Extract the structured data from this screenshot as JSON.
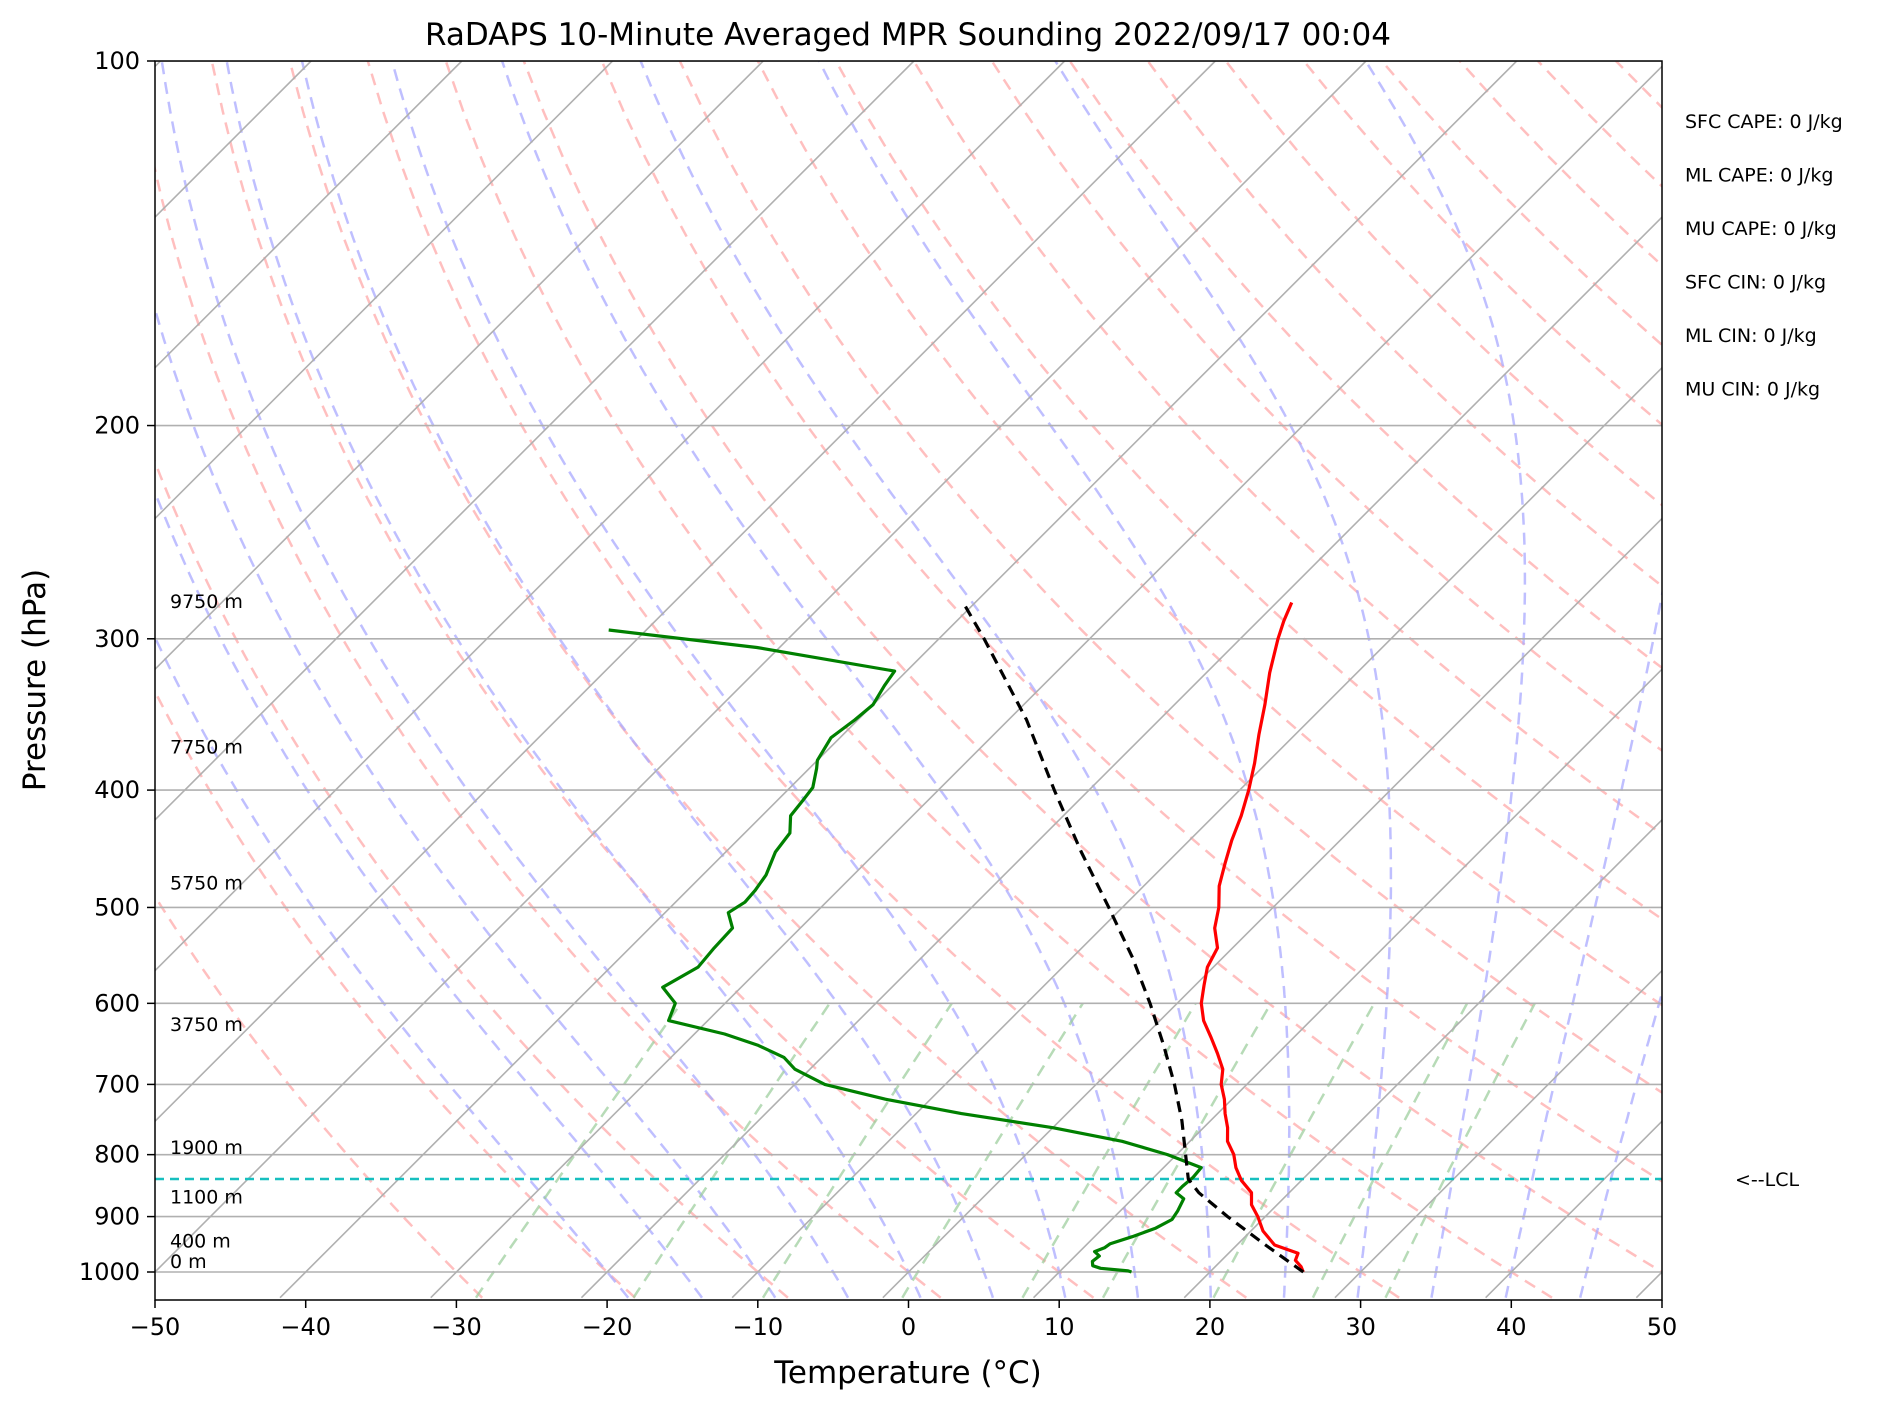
{
  "chart_data": {
    "type": "line",
    "title": "RaDAPS 10-Minute Averaged MPR Sounding 2022/09/17 00:04",
    "xlabel": "Temperature (°C)",
    "ylabel": "Pressure (hPa)",
    "xlim": [
      -50,
      50
    ],
    "ylim": [
      1050,
      100
    ],
    "y_scale": "log",
    "x_ticks": [
      -50,
      -40,
      -30,
      -20,
      -10,
      0,
      10,
      20,
      30,
      40,
      50
    ],
    "x_tick_labels": [
      "−50",
      "−40",
      "−30",
      "−20",
      "−10",
      "0",
      "10",
      "20",
      "30",
      "40",
      "50"
    ],
    "y_ticks": [
      100,
      200,
      300,
      400,
      500,
      600,
      700,
      800,
      900,
      1000
    ],
    "y_tick_labels": [
      "100",
      "200",
      "300",
      "400",
      "500",
      "600",
      "700",
      "800",
      "900",
      "1000"
    ],
    "grid": true,
    "skew": true,
    "height_labels": [
      {
        "p": 1000,
        "text": "0 m"
      },
      {
        "p": 962,
        "text": "400 m"
      },
      {
        "p": 885,
        "text": "1100 m"
      },
      {
        "p": 805,
        "text": "1900 m"
      },
      {
        "p": 637,
        "text": "3750 m"
      },
      {
        "p": 487,
        "text": "5750 m"
      },
      {
        "p": 376,
        "text": "7750 m"
      },
      {
        "p": 285,
        "text": "9750 m"
      }
    ],
    "indices": [
      "SFC CAPE: 0 J/kg",
      "ML CAPE: 0 J/kg",
      "MU CAPE: 0 J/kg",
      "SFC CIN: 0 J/kg",
      "ML CIN: 0 J/kg",
      "MU CIN: 0 J/kg"
    ],
    "lcl": {
      "p": 838,
      "label": "<--LCL"
    },
    "series": [
      {
        "key": "temperature",
        "color": "#ff0000",
        "style": "solid",
        "points": [
          [
            1000,
            26.2
          ],
          [
            990,
            25.7
          ],
          [
            978,
            24.9
          ],
          [
            965,
            24.6
          ],
          [
            950,
            22.5
          ],
          [
            925,
            20.8
          ],
          [
            900,
            19.5
          ],
          [
            880,
            18.3
          ],
          [
            860,
            17.5
          ],
          [
            840,
            16.0
          ],
          [
            820,
            14.8
          ],
          [
            800,
            13.8
          ],
          [
            780,
            12.5
          ],
          [
            760,
            11.6
          ],
          [
            740,
            10.5
          ],
          [
            720,
            9.5
          ],
          [
            700,
            8.3
          ],
          [
            680,
            7.4
          ],
          [
            660,
            6.0
          ],
          [
            640,
            4.5
          ],
          [
            620,
            2.9
          ],
          [
            600,
            1.6
          ],
          [
            580,
            0.6
          ],
          [
            560,
            -0.4
          ],
          [
            540,
            -1.0
          ],
          [
            520,
            -2.5
          ],
          [
            500,
            -3.6
          ],
          [
            480,
            -5.0
          ],
          [
            460,
            -6.1
          ],
          [
            440,
            -7.2
          ],
          [
            420,
            -8.2
          ],
          [
            400,
            -9.4
          ],
          [
            380,
            -10.8
          ],
          [
            360,
            -12.4
          ],
          [
            340,
            -14.0
          ],
          [
            320,
            -15.8
          ],
          [
            300,
            -17.5
          ],
          [
            290,
            -18.3
          ],
          [
            280,
            -19.0
          ]
        ]
      },
      {
        "key": "dewpoint",
        "color": "#008000",
        "style": "solid",
        "points": [
          [
            1000,
            14.8
          ],
          [
            998,
            14.5
          ],
          [
            993,
            12.5
          ],
          [
            988,
            11.8
          ],
          [
            980,
            11.5
          ],
          [
            970,
            11.6
          ],
          [
            962,
            11.0
          ],
          [
            955,
            11.4
          ],
          [
            948,
            11.5
          ],
          [
            935,
            12.5
          ],
          [
            920,
            13.5
          ],
          [
            905,
            14.0
          ],
          [
            890,
            13.8
          ],
          [
            870,
            13.4
          ],
          [
            860,
            12.5
          ],
          [
            850,
            12.5
          ],
          [
            835,
            12.6
          ],
          [
            820,
            12.5
          ],
          [
            800,
            9.4
          ],
          [
            780,
            5.5
          ],
          [
            760,
            0.0
          ],
          [
            740,
            -7.0
          ],
          [
            720,
            -13.0
          ],
          [
            700,
            -18.0
          ],
          [
            680,
            -21.0
          ],
          [
            665,
            -22.5
          ],
          [
            650,
            -25.0
          ],
          [
            636,
            -28.0
          ],
          [
            620,
            -32.6
          ],
          [
            600,
            -33.3
          ],
          [
            582,
            -35.2
          ],
          [
            560,
            -34.2
          ],
          [
            540,
            -34.4
          ],
          [
            520,
            -34.5
          ],
          [
            505,
            -35.8
          ],
          [
            495,
            -35.4
          ],
          [
            484,
            -35.5
          ],
          [
            470,
            -35.8
          ],
          [
            450,
            -36.7
          ],
          [
            434,
            -37.0
          ],
          [
            420,
            -38.1
          ],
          [
            408,
            -38.3
          ],
          [
            398,
            -38.5
          ],
          [
            384,
            -39.5
          ],
          [
            378,
            -40.0
          ],
          [
            362,
            -40.6
          ],
          [
            350,
            -40.2
          ],
          [
            340,
            -40.0
          ],
          [
            328,
            -40.5
          ],
          [
            319,
            -40.8
          ],
          [
            305,
            -51.5
          ],
          [
            295,
            -62.5
          ]
        ]
      },
      {
        "key": "parcel",
        "color": "#000000",
        "style": "dashed",
        "points": [
          [
            1000,
            26.2
          ],
          [
            950,
            21.9
          ],
          [
            900,
            17.5
          ],
          [
            860,
            14.0
          ],
          [
            838,
            12.4
          ],
          [
            800,
            10.6
          ],
          [
            750,
            8.1
          ],
          [
            700,
            5.2
          ],
          [
            650,
            1.9
          ],
          [
            600,
            -1.8
          ],
          [
            550,
            -6.0
          ],
          [
            500,
            -10.9
          ],
          [
            450,
            -16.4
          ],
          [
            400,
            -22.3
          ],
          [
            350,
            -28.8
          ],
          [
            300,
            -37.0
          ],
          [
            280,
            -40.8
          ]
        ]
      }
    ]
  }
}
